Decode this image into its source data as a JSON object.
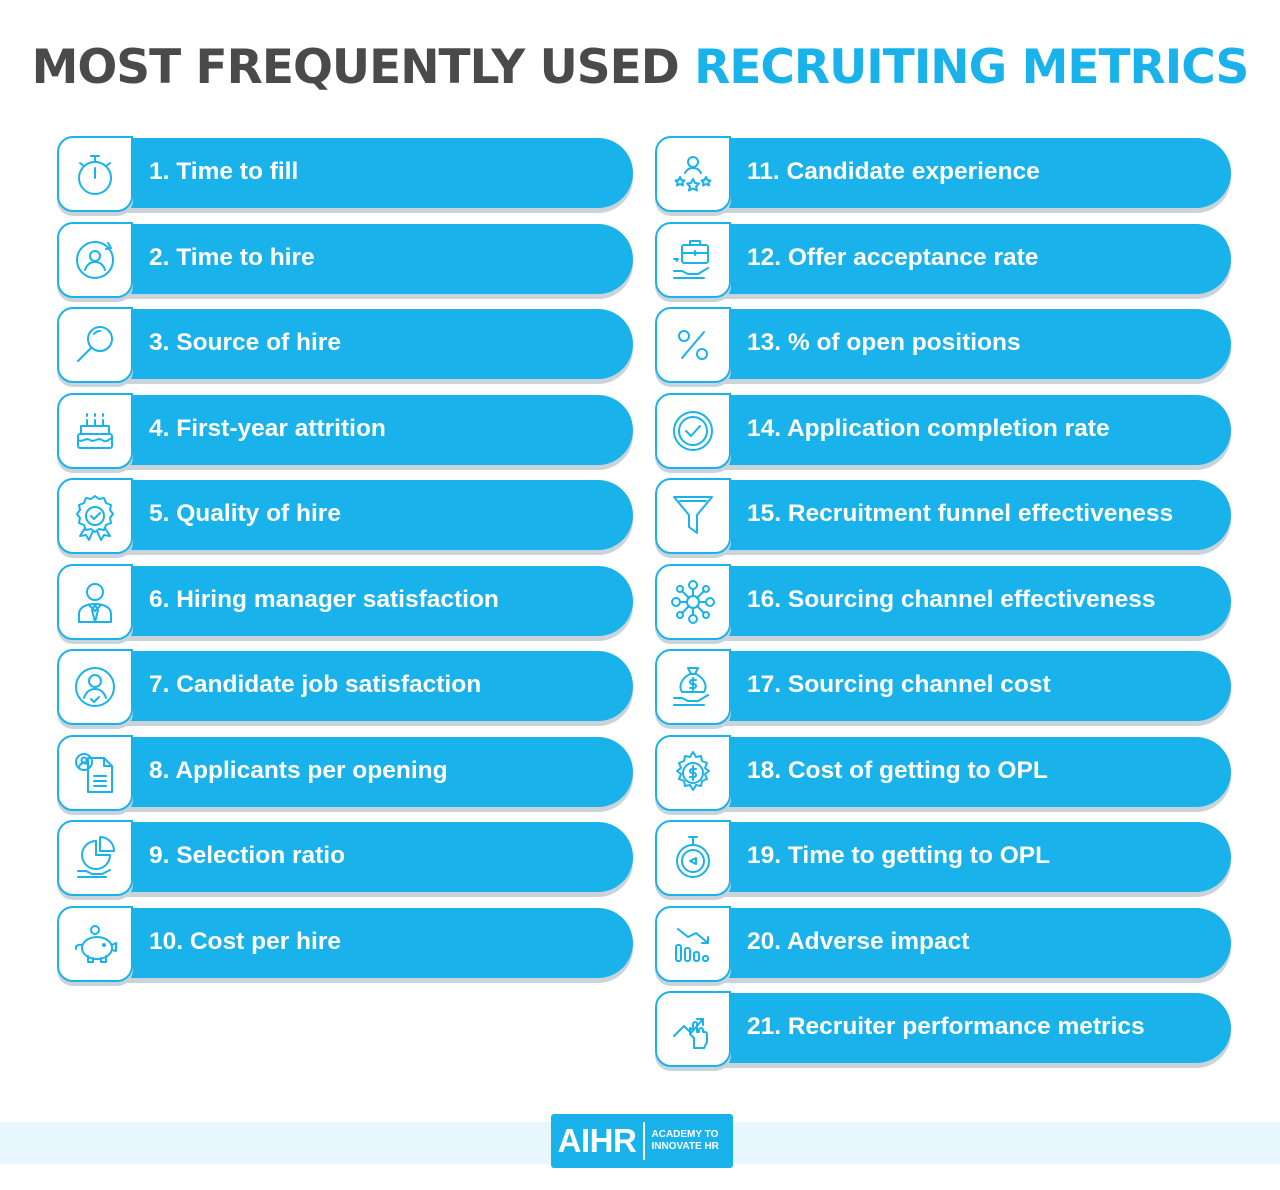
{
  "title": {
    "part1": "MOST FREQUENTLY USED",
    "part2": "RECRUITING METRICS"
  },
  "colors": {
    "accent": "#1ab2ea",
    "title_dark": "#4a4a4a",
    "footer_band": "#e7f7fd"
  },
  "left_column": [
    {
      "label": "1. Time to fill",
      "icon": "stopwatch-icon"
    },
    {
      "label": "2. Time to hire",
      "icon": "person-cycle-icon"
    },
    {
      "label": "3. Source of hire",
      "icon": "magnifier-icon"
    },
    {
      "label": "4. First-year attrition",
      "icon": "birthday-cake-icon"
    },
    {
      "label": "5. Quality of hire",
      "icon": "award-ribbon-icon"
    },
    {
      "label": "6. Hiring manager satisfaction",
      "icon": "manager-icon"
    },
    {
      "label": "7. Candidate job satisfaction",
      "icon": "user-check-icon"
    },
    {
      "label": "8. Applicants per opening",
      "icon": "resume-icon"
    },
    {
      "label": "9. Selection ratio",
      "icon": "pie-hand-icon"
    },
    {
      "label": "10. Cost per hire",
      "icon": "piggy-bank-icon"
    }
  ],
  "right_column": [
    {
      "label": "11. Candidate experience",
      "icon": "user-stars-icon"
    },
    {
      "label": "12. Offer acceptance rate",
      "icon": "briefcase-hand-icon"
    },
    {
      "label": "13. % of open positions",
      "icon": "percent-icon"
    },
    {
      "label": "14. Application completion rate",
      "icon": "check-circle-icon"
    },
    {
      "label": "15. Recruitment funnel effectiveness",
      "icon": "funnel-icon"
    },
    {
      "label": "16. Sourcing channel effectiveness",
      "icon": "network-icon"
    },
    {
      "label": "17. Sourcing channel cost",
      "icon": "money-bag-hand-icon"
    },
    {
      "label": "18. Cost of getting to OPL",
      "icon": "dollar-gear-icon"
    },
    {
      "label": "19. Time to getting to OPL",
      "icon": "timer-icon"
    },
    {
      "label": "20. Adverse impact",
      "icon": "bar-decline-icon"
    },
    {
      "label": "21. Recruiter performance metrics",
      "icon": "trend-hand-icon"
    }
  ],
  "footer": {
    "logo_main": "AIHR",
    "logo_line1": "ACADEMY TO",
    "logo_line2": "INNOVATE HR"
  }
}
